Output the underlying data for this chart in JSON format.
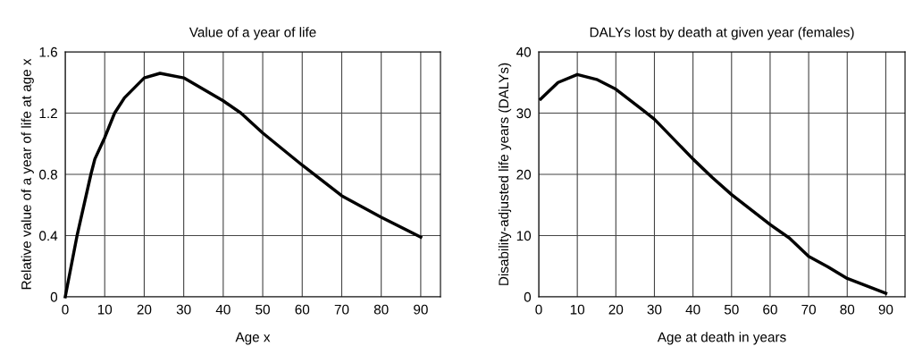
{
  "chart_data": [
    {
      "type": "line",
      "title": "Value of a year of life",
      "xlabel": "Age x",
      "ylabel": "Relative value of a year of life at age x",
      "series": [
        {
          "color": "#000000",
          "x": [
            0,
            3,
            6.5,
            7.5,
            10,
            12.5,
            15,
            20,
            24,
            30,
            40,
            44.5,
            50,
            60,
            70,
            75,
            80,
            90
          ],
          "values": [
            0,
            0.4,
            0.8,
            0.9,
            1.04,
            1.2,
            1.3,
            1.43,
            1.46,
            1.43,
            1.28,
            1.2,
            1.07,
            0.86,
            0.66,
            0.59,
            0.52,
            0.39
          ]
        }
      ],
      "xlim": [
        0,
        95
      ],
      "xticks": [
        0,
        10,
        20,
        30,
        40,
        50,
        60,
        70,
        80,
        90
      ],
      "ylim": [
        0,
        1.6
      ],
      "yticks": [
        0,
        0.4,
        0.8,
        1.2,
        1.6
      ],
      "grid": true,
      "marker": "none",
      "line_style": "solid"
    },
    {
      "type": "line",
      "title": "DALYs lost by death at given year (females)",
      "xlabel": "Age at death in years",
      "ylabel": "Disability-adjusted life years (DALYs)",
      "series": [
        {
          "color": "#000000",
          "x": [
            0.5,
            5,
            10,
            15,
            20,
            27,
            30,
            40,
            45,
            50,
            60,
            65,
            70,
            75,
            80,
            90
          ],
          "values": [
            32.3,
            35,
            36.3,
            35.5,
            33.9,
            30.5,
            29,
            22.5,
            19.5,
            16.7,
            11.8,
            9.6,
            6.6,
            4.9,
            3,
            0.6
          ]
        }
      ],
      "xlim": [
        0,
        95
      ],
      "xticks": [
        0,
        10,
        20,
        30,
        40,
        50,
        60,
        70,
        80,
        90
      ],
      "ylim": [
        0,
        40
      ],
      "yticks": [
        0,
        10,
        20,
        30,
        40
      ],
      "grid": true,
      "marker": "none",
      "line_style": "solid"
    }
  ]
}
